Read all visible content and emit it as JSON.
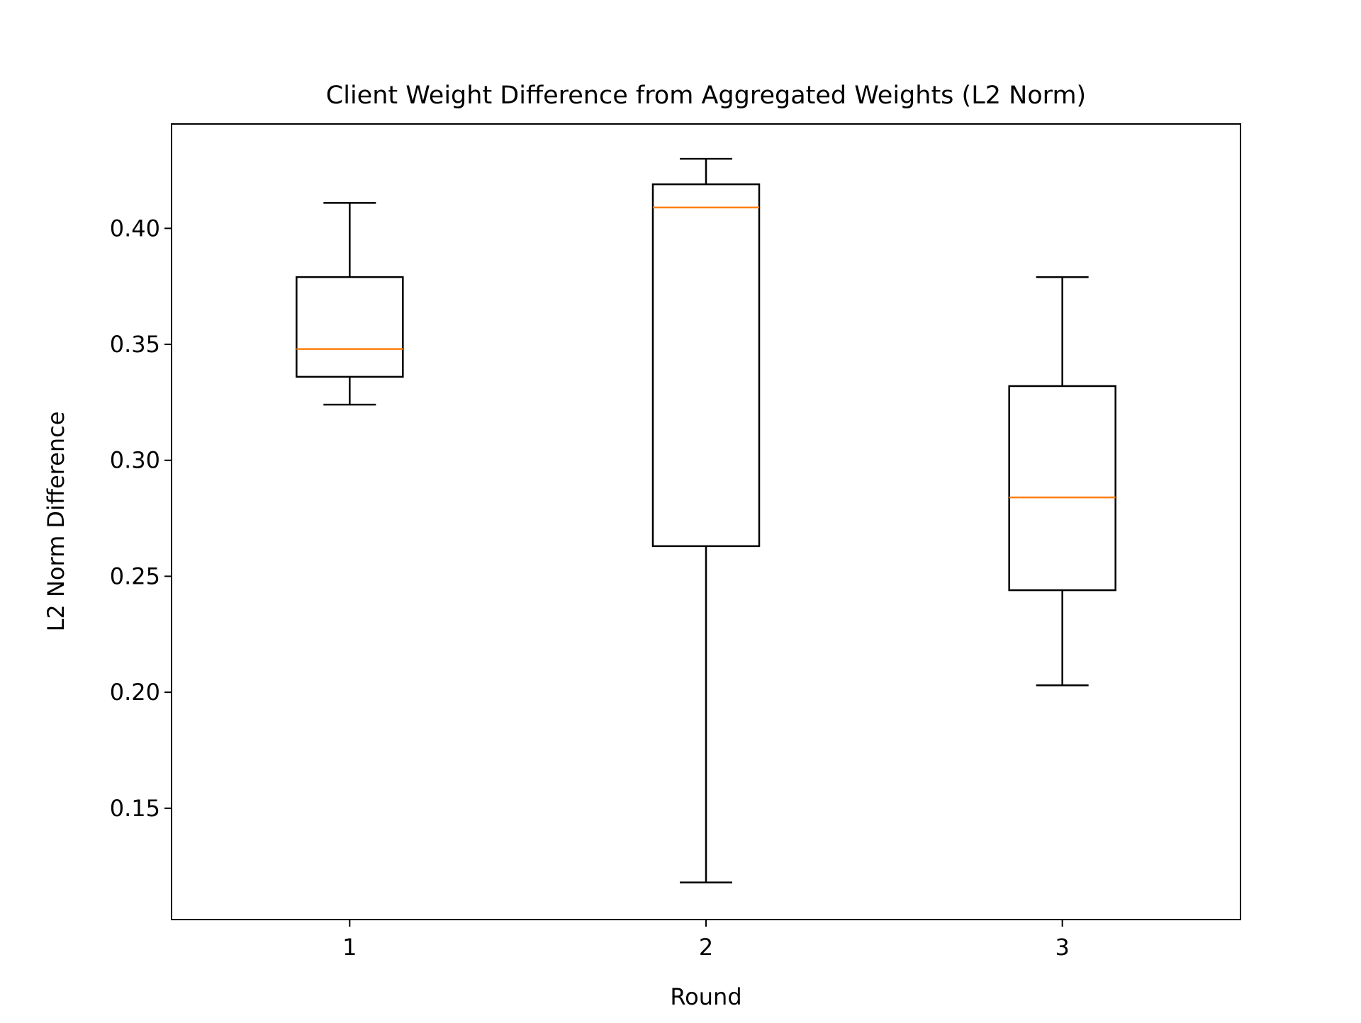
{
  "chart_data": {
    "type": "box",
    "title": "Client Weight Difference from Aggregated Weights (L2 Norm)",
    "xlabel": "Round",
    "ylabel": "L2 Norm Difference",
    "categories": [
      "1",
      "2",
      "3"
    ],
    "yticks": [
      0.15,
      0.2,
      0.25,
      0.3,
      0.35,
      0.4
    ],
    "ytick_labels": [
      "0.15",
      "0.20",
      "0.25",
      "0.30",
      "0.35",
      "0.40"
    ],
    "ylim": [
      0.102,
      0.445
    ],
    "grid": false,
    "boxes": [
      {
        "category": "1",
        "whisker_low": 0.324,
        "q1": 0.336,
        "median": 0.348,
        "q3": 0.379,
        "whisker_high": 0.411
      },
      {
        "category": "2",
        "whisker_low": 0.118,
        "q1": 0.263,
        "median": 0.409,
        "q3": 0.419,
        "whisker_high": 0.43
      },
      {
        "category": "3",
        "whisker_low": 0.203,
        "q1": 0.244,
        "median": 0.284,
        "q3": 0.332,
        "whisker_high": 0.379
      }
    ],
    "colors": {
      "box": "#000000",
      "median": "#ff7f0e",
      "background": "#ffffff"
    }
  }
}
